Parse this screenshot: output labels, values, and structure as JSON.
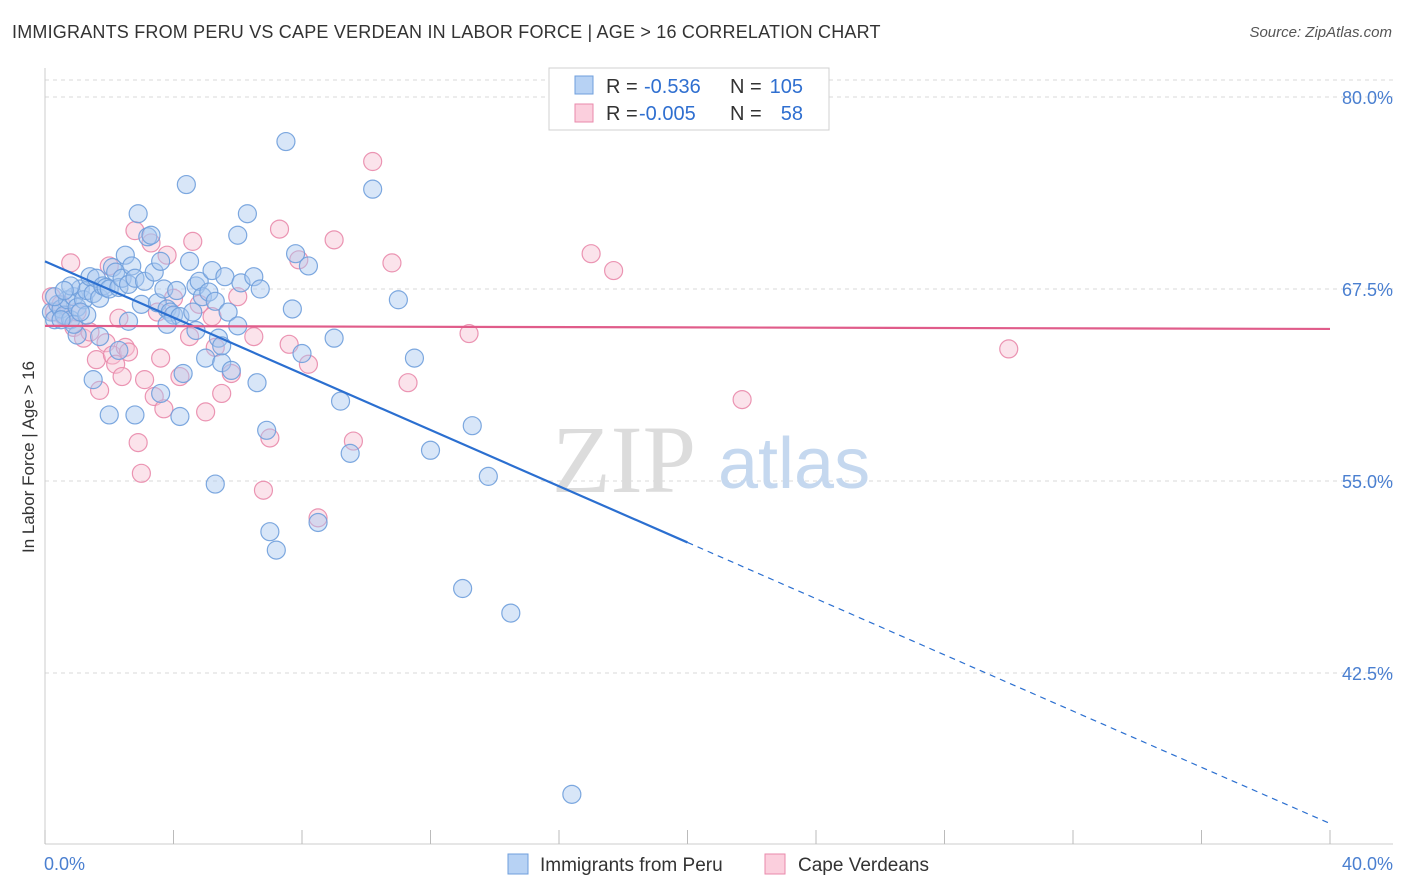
{
  "title": "IMMIGRANTS FROM PERU VS CAPE VERDEAN IN LABOR FORCE | AGE > 16 CORRELATION CHART",
  "source": "Source: ZipAtlas.com",
  "watermark": {
    "zip": "ZIP",
    "atlas": "atlas"
  },
  "colors": {
    "blue_fill": "#a9c8f0",
    "blue_stroke": "#6f9fdc",
    "blue_line": "#2b6fd0",
    "pink_fill": "#f7c0d2",
    "pink_stroke": "#e98aab",
    "pink_line": "#e05c8a",
    "grid": "#d9d9d9",
    "tick_text": "#4a7fd0"
  },
  "legend": {
    "rows": [
      {
        "r_label": "R =",
        "r_value": "-0.536",
        "n_label": "N =",
        "n_value": "105"
      },
      {
        "r_label": "R =",
        "r_value": "-0.005",
        "n_label": "N =",
        "n_value": "58"
      }
    ]
  },
  "chart_data": {
    "type": "scatter",
    "title": "IMMIGRANTS FROM PERU VS CAPE VERDEAN IN LABOR FORCE | AGE > 16 CORRELATION CHART",
    "xlabel": "",
    "ylabel": "In Labor Force | Age > 16",
    "xlim": [
      0,
      40
    ],
    "ylim": [
      35,
      82
    ],
    "x_tick_labels": [
      "0.0%",
      "40.0%"
    ],
    "y_ticks": [
      42.5,
      55.0,
      67.5,
      80.0
    ],
    "y_tick_labels": [
      "42.5%",
      "55.0%",
      "67.5%",
      "80.0%"
    ],
    "grid": true,
    "legend_position": "top-center",
    "series": [
      {
        "name": "Immigrants from Peru",
        "R": -0.536,
        "N": 105,
        "trend": {
          "x0": 0,
          "y0": 69.3,
          "x1": 20,
          "y1": 51.0,
          "dashed_to_x": 40,
          "dashed_to_y": 32.7
        },
        "points": [
          [
            0.2,
            66
          ],
          [
            0.3,
            65.5
          ],
          [
            0.4,
            66.5
          ],
          [
            0.5,
            66.2
          ],
          [
            0.6,
            65.8
          ],
          [
            0.7,
            66.8
          ],
          [
            0.8,
            65.5
          ],
          [
            0.9,
            67
          ],
          [
            1.0,
            66.3
          ],
          [
            1.1,
            67.5
          ],
          [
            1.2,
            66.8
          ],
          [
            1.3,
            67.4
          ],
          [
            1.4,
            68.3
          ],
          [
            1.5,
            67.2
          ],
          [
            1.6,
            68.2
          ],
          [
            1.7,
            66.9
          ],
          [
            1.8,
            67.7
          ],
          [
            1.9,
            67.6
          ],
          [
            2.0,
            67.5
          ],
          [
            2.1,
            68.9
          ],
          [
            2.2,
            68.6
          ],
          [
            2.3,
            67.6
          ],
          [
            2.4,
            68.2
          ],
          [
            2.5,
            69.7
          ],
          [
            2.6,
            67.8
          ],
          [
            2.7,
            69
          ],
          [
            2.8,
            68.2
          ],
          [
            2.9,
            72.4
          ],
          [
            3.0,
            66.5
          ],
          [
            3.1,
            68
          ],
          [
            3.2,
            70.9
          ],
          [
            3.3,
            71
          ],
          [
            3.4,
            68.6
          ],
          [
            3.5,
            66.6
          ],
          [
            3.6,
            69.3
          ],
          [
            3.7,
            67.5
          ],
          [
            3.8,
            66.2
          ],
          [
            3.9,
            66
          ],
          [
            4.0,
            65.8
          ],
          [
            4.1,
            67.4
          ],
          [
            4.2,
            65.7
          ],
          [
            4.3,
            62
          ],
          [
            4.4,
            74.3
          ],
          [
            4.5,
            69.3
          ],
          [
            4.6,
            66
          ],
          [
            4.7,
            67.7
          ],
          [
            4.8,
            68
          ],
          [
            4.9,
            67
          ],
          [
            5.0,
            63
          ],
          [
            5.1,
            67.3
          ],
          [
            5.2,
            68.7
          ],
          [
            5.3,
            66.7
          ],
          [
            5.4,
            64.3
          ],
          [
            5.5,
            62.7
          ],
          [
            5.6,
            68.3
          ],
          [
            5.7,
            66
          ],
          [
            5.8,
            62.2
          ],
          [
            6.0,
            71
          ],
          [
            6.1,
            67.9
          ],
          [
            6.3,
            72.4
          ],
          [
            6.5,
            68.3
          ],
          [
            6.6,
            61.4
          ],
          [
            6.7,
            67.5
          ],
          [
            6.9,
            58.3
          ],
          [
            7.0,
            51.7
          ],
          [
            7.2,
            50.5
          ],
          [
            7.5,
            77.1
          ],
          [
            7.7,
            66.2
          ],
          [
            7.8,
            69.8
          ],
          [
            8.0,
            63.3
          ],
          [
            8.2,
            69
          ],
          [
            8.5,
            52.3
          ],
          [
            9.0,
            64.3
          ],
          [
            9.2,
            60.2
          ],
          [
            9.5,
            56.8
          ],
          [
            10.2,
            74
          ],
          [
            11,
            66.8
          ],
          [
            11.5,
            63
          ],
          [
            12.0,
            57
          ],
          [
            13.0,
            48
          ],
          [
            13.3,
            58.6
          ],
          [
            13.8,
            55.3
          ],
          [
            14.5,
            46.4
          ],
          [
            16.4,
            34.6
          ],
          [
            1.5,
            61.6
          ],
          [
            2.0,
            59.3
          ],
          [
            2.8,
            59.3
          ],
          [
            3.6,
            60.7
          ],
          [
            4.2,
            59.2
          ],
          [
            5.3,
            54.8
          ],
          [
            1.0,
            64.5
          ],
          [
            1.7,
            64.4
          ],
          [
            2.3,
            63.5
          ],
          [
            2.6,
            65.4
          ],
          [
            3.8,
            65.2
          ],
          [
            4.7,
            64.8
          ],
          [
            5.5,
            63.8
          ],
          [
            6.0,
            65.1
          ],
          [
            0.9,
            65.2
          ],
          [
            1.3,
            65.8
          ],
          [
            0.5,
            65.5
          ],
          [
            0.3,
            67
          ],
          [
            0.8,
            67.7
          ],
          [
            1.1,
            66
          ],
          [
            0.6,
            67.4
          ]
        ]
      },
      {
        "name": "Cape Verdeans",
        "R": -0.005,
        "N": 58,
        "trend": {
          "x0": 0,
          "y0": 65.1,
          "x1": 40,
          "y1": 64.9
        },
        "points": [
          [
            0.2,
            67
          ],
          [
            0.3,
            66
          ],
          [
            0.5,
            66.5
          ],
          [
            0.6,
            65.7
          ],
          [
            0.8,
            69.2
          ],
          [
            0.9,
            65
          ],
          [
            1.0,
            66
          ],
          [
            1.2,
            64.3
          ],
          [
            1.4,
            64.7
          ],
          [
            1.6,
            62.9
          ],
          [
            1.7,
            60.9
          ],
          [
            1.9,
            64
          ],
          [
            2.0,
            69
          ],
          [
            2.1,
            63.2
          ],
          [
            2.2,
            62.6
          ],
          [
            2.3,
            65.6
          ],
          [
            2.4,
            61.8
          ],
          [
            2.5,
            63.7
          ],
          [
            2.6,
            63.4
          ],
          [
            2.8,
            71.3
          ],
          [
            2.9,
            57.5
          ],
          [
            3.0,
            55.5
          ],
          [
            3.1,
            61.6
          ],
          [
            3.3,
            70.5
          ],
          [
            3.4,
            60.5
          ],
          [
            3.5,
            66
          ],
          [
            3.6,
            63
          ],
          [
            3.7,
            59.7
          ],
          [
            3.8,
            69.7
          ],
          [
            4.0,
            66.9
          ],
          [
            4.2,
            61.8
          ],
          [
            4.5,
            64.4
          ],
          [
            4.6,
            70.6
          ],
          [
            4.8,
            66.5
          ],
          [
            5.0,
            59.5
          ],
          [
            5.2,
            65.7
          ],
          [
            5.3,
            63.7
          ],
          [
            5.5,
            60.7
          ],
          [
            5.8,
            62
          ],
          [
            6.0,
            67
          ],
          [
            6.5,
            64.4
          ],
          [
            6.8,
            54.4
          ],
          [
            7.0,
            57.8
          ],
          [
            7.3,
            71.4
          ],
          [
            7.6,
            63.9
          ],
          [
            7.9,
            69.4
          ],
          [
            8.2,
            62.6
          ],
          [
            8.5,
            52.6
          ],
          [
            9.0,
            70.7
          ],
          [
            9.6,
            57.6
          ],
          [
            10.2,
            75.8
          ],
          [
            10.8,
            69.2
          ],
          [
            11.3,
            61.4
          ],
          [
            13.2,
            64.6
          ],
          [
            17.0,
            69.8
          ],
          [
            17.7,
            68.7
          ],
          [
            21.7,
            60.3
          ],
          [
            30.0,
            63.6
          ]
        ]
      }
    ]
  },
  "bottom_legend": [
    {
      "label": "Immigrants from Peru"
    },
    {
      "label": "Cape Verdeans"
    }
  ]
}
